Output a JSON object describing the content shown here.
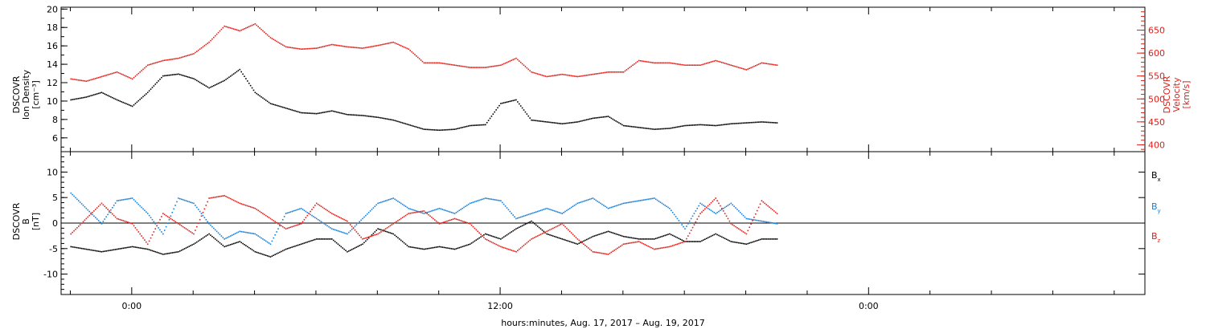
{
  "chart_data": [
    {
      "type": "scatter",
      "panel": "top",
      "ylabel_left": [
        "DSCOVR",
        "Ion Density",
        "[cm⁻³]"
      ],
      "ylabel_right": [
        "DSCOVR",
        "Velocity",
        "[km/s]"
      ],
      "y_left_ticks": [
        6,
        8,
        10,
        12,
        14,
        16,
        18,
        20
      ],
      "y_right_ticks": [
        400,
        450,
        500,
        550,
        600,
        650
      ],
      "ylim_left": [
        4.5,
        20.2
      ],
      "ylim_right": [
        385,
        700
      ],
      "colors": {
        "left": "#000000",
        "right": "#e0201a"
      },
      "series": [
        {
          "axis": "left",
          "color": "#000000",
          "x": [
            -2.0,
            -1.5,
            -1.0,
            -0.5,
            0.0,
            0.5,
            1.0,
            1.5,
            2.0,
            2.5,
            3.0,
            3.5,
            4.0,
            4.5,
            5.0,
            5.5,
            6.0,
            6.5,
            7.0,
            7.5,
            8.0,
            8.5,
            9.0,
            9.5,
            10.0,
            10.5,
            11.0,
            11.5,
            12.0,
            12.5,
            13.0,
            13.5,
            14.0,
            14.5,
            15.0,
            15.5,
            16.0,
            16.5,
            17.0,
            17.5,
            18.0,
            18.5,
            19.0,
            19.5,
            20.0,
            20.5,
            21.0
          ],
          "y": [
            10.2,
            10.5,
            11.0,
            10.2,
            9.5,
            11.0,
            12.8,
            13.0,
            12.5,
            11.5,
            12.3,
            13.5,
            11.0,
            9.8,
            9.3,
            8.8,
            8.7,
            9.0,
            8.6,
            8.5,
            8.3,
            8.0,
            7.5,
            7.0,
            6.9,
            7.0,
            7.4,
            7.5,
            9.8,
            10.2,
            8.0,
            7.8,
            7.6,
            7.8,
            8.2,
            8.4,
            7.4,
            7.2,
            7.0,
            7.1,
            7.4,
            7.5,
            7.4,
            7.6,
            7.7,
            7.8,
            7.7
          ]
        },
        {
          "axis": "right",
          "color": "#e0201a",
          "x": [
            -2.0,
            -1.5,
            -1.0,
            -0.5,
            0.0,
            0.5,
            1.0,
            1.5,
            2.0,
            2.5,
            3.0,
            3.5,
            4.0,
            4.5,
            5.0,
            5.5,
            6.0,
            6.5,
            7.0,
            7.5,
            8.0,
            8.5,
            9.0,
            9.5,
            10.0,
            10.5,
            11.0,
            11.5,
            12.0,
            12.5,
            13.0,
            13.5,
            14.0,
            14.5,
            15.0,
            15.5,
            16.0,
            16.5,
            17.0,
            17.5,
            18.0,
            18.5,
            19.0,
            19.5,
            20.0,
            20.5,
            21.0
          ],
          "y": [
            545,
            540,
            550,
            560,
            545,
            575,
            585,
            590,
            600,
            625,
            660,
            650,
            665,
            635,
            615,
            610,
            612,
            620,
            615,
            612,
            618,
            625,
            610,
            580,
            580,
            575,
            570,
            570,
            575,
            590,
            560,
            550,
            555,
            550,
            555,
            560,
            560,
            585,
            580,
            580,
            575,
            575,
            585,
            575,
            565,
            580,
            575
          ]
        }
      ]
    },
    {
      "type": "scatter",
      "panel": "bottom",
      "ylabel_left": [
        "DSCOVR",
        "B",
        "[nT]"
      ],
      "y_left_ticks": [
        -10,
        -5,
        0,
        5,
        10
      ],
      "ylim_left": [
        -14,
        14
      ],
      "zero_line": true,
      "legend": [
        {
          "label": "B",
          "sub": "x",
          "color": "#000000"
        },
        {
          "label": "B",
          "sub": "y",
          "color": "#1a7fd6"
        },
        {
          "label": "B",
          "sub": "z",
          "color": "#e0201a"
        }
      ],
      "series": [
        {
          "name": "Bx",
          "color": "#000000",
          "x": [
            -2.0,
            -1.5,
            -1.0,
            -0.5,
            0.0,
            0.5,
            1.0,
            1.5,
            2.0,
            2.5,
            3.0,
            3.5,
            4.0,
            4.5,
            5.0,
            5.5,
            6.0,
            6.5,
            7.0,
            7.5,
            8.0,
            8.5,
            9.0,
            9.5,
            10.0,
            10.5,
            11.0,
            11.5,
            12.0,
            12.5,
            13.0,
            13.5,
            14.0,
            14.5,
            15.0,
            15.5,
            16.0,
            16.5,
            17.0,
            17.5,
            18.0,
            18.5,
            19.0,
            19.5,
            20.0,
            20.5,
            21.0
          ],
          "y": [
            -4.5,
            -5.0,
            -5.5,
            -5.0,
            -4.5,
            -5.0,
            -6.0,
            -5.5,
            -4.0,
            -2.0,
            -4.5,
            -3.5,
            -5.5,
            -6.5,
            -5.0,
            -4.0,
            -3.0,
            -3.0,
            -5.5,
            -4.0,
            -1.0,
            -2.0,
            -4.5,
            -5.0,
            -4.5,
            -5.0,
            -4.0,
            -2.0,
            -3.0,
            -1.0,
            0.5,
            -2.0,
            -3.0,
            -4.0,
            -2.5,
            -1.5,
            -2.5,
            -3.0,
            -3.0,
            -2.0,
            -3.5,
            -3.5,
            -2.0,
            -3.5,
            -4.0,
            -3.0,
            -3.0
          ]
        },
        {
          "name": "By",
          "color": "#1a7fd6",
          "x": [
            -2.0,
            -1.5,
            -1.0,
            -0.5,
            0.0,
            0.5,
            1.0,
            1.5,
            2.0,
            2.5,
            3.0,
            3.5,
            4.0,
            4.5,
            5.0,
            5.5,
            6.0,
            6.5,
            7.0,
            7.5,
            8.0,
            8.5,
            9.0,
            9.5,
            10.0,
            10.5,
            11.0,
            11.5,
            12.0,
            12.5,
            13.0,
            13.5,
            14.0,
            14.5,
            15.0,
            15.5,
            16.0,
            16.5,
            17.0,
            17.5,
            18.0,
            18.5,
            19.0,
            19.5,
            20.0,
            20.5,
            21.0
          ],
          "y": [
            6.0,
            3.0,
            0.0,
            4.5,
            5.0,
            2.0,
            -2.0,
            5.0,
            4.0,
            0.0,
            -3.0,
            -1.5,
            -2.0,
            -4.0,
            2.0,
            3.0,
            1.0,
            -1.0,
            -2.0,
            1.0,
            4.0,
            5.0,
            3.0,
            2.0,
            3.0,
            2.0,
            4.0,
            5.0,
            4.5,
            1.0,
            2.0,
            3.0,
            2.0,
            4.0,
            5.0,
            3.0,
            4.0,
            4.5,
            5.0,
            3.0,
            -1.0,
            4.0,
            2.0,
            4.0,
            1.0,
            0.5,
            0.0
          ]
        },
        {
          "name": "Bz",
          "color": "#e0201a",
          "x": [
            -2.0,
            -1.5,
            -1.0,
            -0.5,
            0.0,
            0.5,
            1.0,
            1.5,
            2.0,
            2.5,
            3.0,
            3.5,
            4.0,
            4.5,
            5.0,
            5.5,
            6.0,
            6.5,
            7.0,
            7.5,
            8.0,
            8.5,
            9.0,
            9.5,
            10.0,
            10.5,
            11.0,
            11.5,
            12.0,
            12.5,
            13.0,
            13.5,
            14.0,
            14.5,
            15.0,
            15.5,
            16.0,
            16.5,
            17.0,
            17.5,
            18.0,
            18.5,
            19.0,
            19.5,
            20.0,
            20.5,
            21.0
          ],
          "y": [
            -2.0,
            1.0,
            4.0,
            1.0,
            0.0,
            -4.0,
            2.0,
            0.0,
            -2.0,
            5.0,
            5.5,
            4.0,
            3.0,
            1.0,
            -1.0,
            0.0,
            4.0,
            2.0,
            0.5,
            -3.0,
            -2.0,
            0.0,
            2.0,
            2.5,
            0.0,
            1.0,
            0.0,
            -3.0,
            -4.5,
            -5.5,
            -3.0,
            -1.5,
            0.0,
            -3.0,
            -5.5,
            -6.0,
            -4.0,
            -3.5,
            -5.0,
            -4.5,
            -3.5,
            2.0,
            5.0,
            0.0,
            -2.0,
            4.5,
            2.0
          ]
        }
      ]
    }
  ],
  "x_axis": {
    "xlim": [
      -2.3,
      33.0
    ],
    "tick_hours": [
      0,
      12,
      24
    ],
    "tick_labels": [
      "0:00",
      "12:00",
      "0:00"
    ],
    "minor_step_hours": 2,
    "label": "hours:minutes, Aug. 17, 2017 – Aug. 19, 2017"
  }
}
